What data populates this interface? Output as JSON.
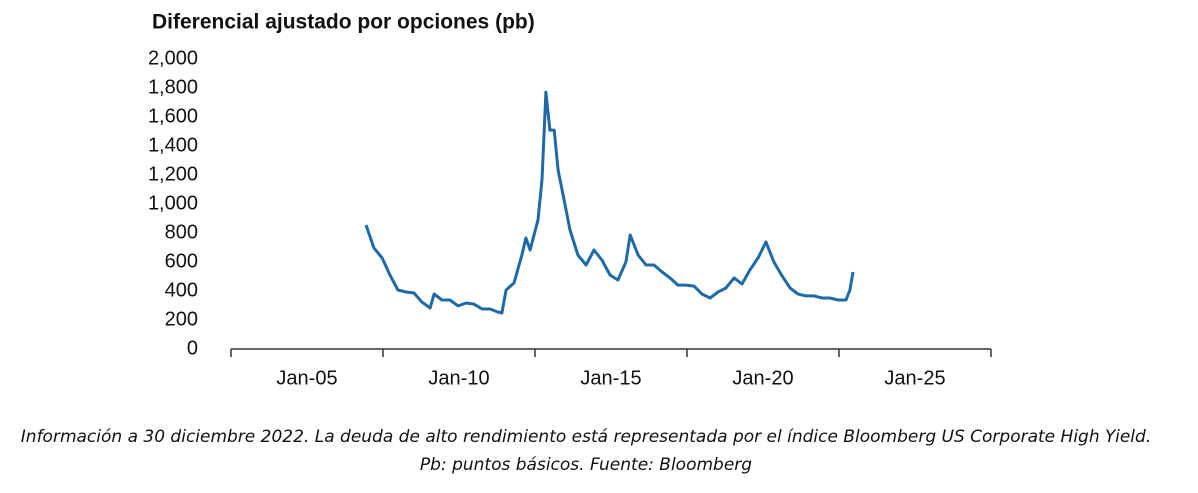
{
  "chart_data": {
    "type": "line",
    "title": "Diferencial ajustado por opciones (pb)",
    "caption": [
      "Información a 30 diciembre 2022. La deuda de alto rendimiento está representada por el índice Bloomberg US Corporate High Yield.",
      "Pb: puntos básicos. Fuente: Bloomberg"
    ],
    "x": [
      2006.94,
      2007.2,
      2007.47,
      2007.73,
      2007.99,
      2008.26,
      2008.52,
      2008.78,
      2009.05,
      2009.18,
      2009.44,
      2009.7,
      2009.97,
      2010.23,
      2010.49,
      2010.76,
      2011.02,
      2011.28,
      2011.41,
      2011.55,
      2011.81,
      2012.07,
      2012.2,
      2012.34,
      2012.6,
      2012.73,
      2012.86,
      2012.99,
      2013.13,
      2013.26,
      2013.39,
      2013.65,
      2013.91,
      2014.18,
      2014.44,
      2014.7,
      2014.97,
      2015.23,
      2015.49,
      2015.63,
      2015.89,
      2016.15,
      2016.41,
      2016.68,
      2016.94,
      2017.2,
      2017.47,
      2017.73,
      2017.99,
      2018.26,
      2018.52,
      2018.78,
      2019.05,
      2019.31,
      2019.57,
      2019.84,
      2020.1,
      2020.36,
      2020.63,
      2020.89,
      2021.15,
      2021.41,
      2021.68,
      2021.94,
      2022.2,
      2022.47,
      2022.73,
      2022.86,
      2022.96
    ],
    "series": [
      {
        "color": "#1f6aa5",
        "values": [
          855,
          697,
          628,
          510,
          407,
          393,
          386,
          324,
          283,
          379,
          338,
          338,
          297,
          317,
          310,
          276,
          276,
          255,
          248,
          407,
          455,
          648,
          766,
          683,
          890,
          1166,
          1772,
          1510,
          1510,
          1234,
          1097,
          821,
          648,
          579,
          683,
          614,
          510,
          476,
          600,
          786,
          648,
          579,
          579,
          531,
          490,
          441,
          441,
          434,
          379,
          352,
          393,
          421,
          490,
          448,
          545,
          628,
          738,
          600,
          503,
          421,
          379,
          366,
          366,
          352,
          352,
          338,
          338,
          407,
          531
        ]
      }
    ],
    "xlim": [
      2002.5,
      2027.5
    ],
    "xticks": [
      {
        "value": 2005,
        "label": "Jan-05"
      },
      {
        "value": 2010,
        "label": "Jan-10"
      },
      {
        "value": 2015,
        "label": "Jan-15"
      },
      {
        "value": 2020,
        "label": "Jan-20"
      },
      {
        "value": 2025,
        "label": "Jan-25"
      }
    ],
    "xtick_marks": [
      2002.5,
      2007.5,
      2012.5,
      2017.5,
      2022.5,
      2027.5
    ],
    "ylim": [
      0,
      2000
    ],
    "yticks": [
      0,
      200,
      400,
      600,
      800,
      {
        "value": 1000,
        "label": "1,000"
      },
      {
        "value": 1200,
        "label": "1,200"
      },
      {
        "value": 1400,
        "label": "1,400"
      },
      {
        "value": 1600,
        "label": "1,600"
      },
      {
        "value": 1800,
        "label": "1,800"
      },
      {
        "value": 2000,
        "label": "2,000"
      }
    ],
    "grid": false
  }
}
